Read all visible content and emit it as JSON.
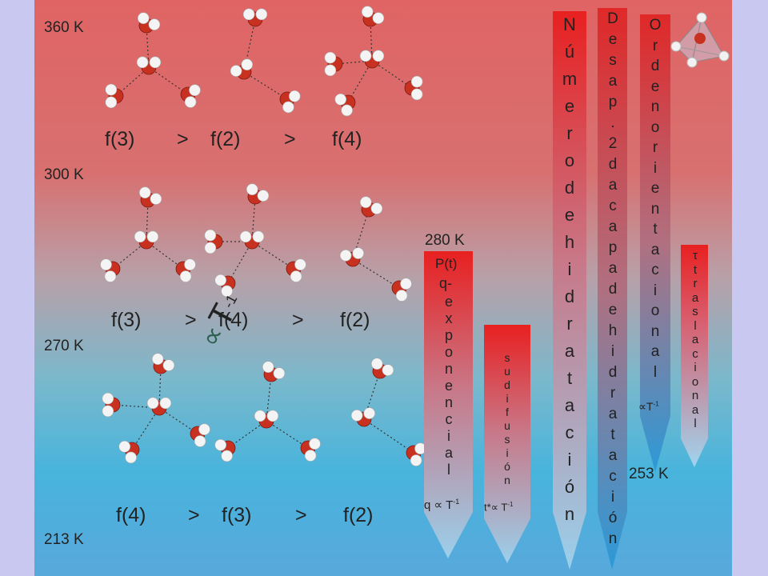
{
  "temperatures": [
    "360 K",
    "300 K",
    "270 K",
    "213 K"
  ],
  "rows": [
    {
      "a": "f(3)",
      "op1": ">",
      "b": "f(2)",
      "op2": ">",
      "c": "f(4)"
    },
    {
      "a": "f(3)",
      "op1": ">",
      "b": "f(4)",
      "op2": ">",
      "c": "f(2)"
    },
    {
      "a": "f(4)",
      "op1": ">",
      "b": "f(3)",
      "op2": ">",
      "c": "f(2)"
    }
  ],
  "proportional": {
    "symbol": "∝",
    "var": "T",
    "exp": "-1"
  },
  "bars": {
    "ptq": {
      "temp": "280 K",
      "head": "P(t)",
      "sub": "q-",
      "letters": "exponencial",
      "foot": "q ∝ T",
      "foot_exp": "-1"
    },
    "diffusion": {
      "letters": "sudifusión",
      "foot": "t*∝ T",
      "foot_exp": "-1"
    },
    "hydration_number": {
      "letters": "Númerodehidratación"
    },
    "second_shell": {
      "letters": "Desap.2dacapadehidratación"
    },
    "orientational": {
      "letters": "Ordenorientacional",
      "foot": "∝T",
      "foot_exp": "-1",
      "below": "253 K"
    },
    "translational": {
      "letters": "τtraslacional"
    }
  },
  "colors": {
    "red": "#e02020",
    "blue": "#40a8e0",
    "oxygen": "#c83020",
    "hydrogen": "#f4f4f4"
  }
}
